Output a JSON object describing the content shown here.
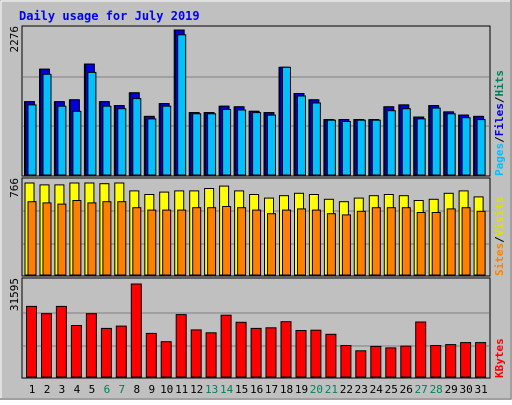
{
  "colors": {
    "background": "#c0c0c0",
    "plot_bg": "#c0c0c0",
    "title": "#0000ff",
    "hits": "#00805c",
    "files": "#0000e0",
    "pages": "#00c0ff",
    "visits": "#ffff00",
    "sites": "#ff8000",
    "kbytes": "#ff0000",
    "weekend_day": "#00805c",
    "weekday_day": "#000000"
  },
  "chart_data": [
    {
      "type": "bar",
      "title": "Daily usage for July 2019",
      "ymax_label": "2276",
      "ymax": 2276,
      "legend": [
        "Pages",
        "/",
        "Files",
        "/",
        "Hits"
      ],
      "categories": [
        "1",
        "2",
        "3",
        "4",
        "5",
        "6",
        "7",
        "8",
        "9",
        "10",
        "11",
        "12",
        "13",
        "14",
        "15",
        "16",
        "17",
        "18",
        "19",
        "20",
        "21",
        "22",
        "23",
        "24",
        "25",
        "26",
        "27",
        "28",
        "29",
        "30",
        "31"
      ],
      "weekend_days": [
        "6",
        "7",
        "13",
        "14",
        "20",
        "21",
        "27",
        "28"
      ],
      "series": [
        {
          "name": "Hits",
          "values": [
            1150,
            1660,
            1150,
            1180,
            1740,
            1150,
            1090,
            1290,
            920,
            1120,
            2276,
            980,
            980,
            1080,
            1070,
            1000,
            980,
            1690,
            1280,
            1180,
            870,
            870,
            870,
            870,
            1070,
            1100,
            910,
            1090,
            990,
            940,
            920
          ]
        },
        {
          "name": "Files",
          "values": [
            1150,
            1660,
            1150,
            1180,
            1740,
            1150,
            1090,
            1290,
            920,
            1120,
            2276,
            980,
            980,
            1080,
            1070,
            1000,
            980,
            1690,
            1280,
            1180,
            870,
            870,
            870,
            870,
            1070,
            1100,
            910,
            1090,
            990,
            940,
            920
          ]
        },
        {
          "name": "Pages",
          "values": [
            1100,
            1580,
            1080,
            1000,
            1610,
            1080,
            1040,
            1200,
            880,
            1080,
            2200,
            960,
            960,
            1030,
            1020,
            980,
            940,
            1690,
            1240,
            1130,
            860,
            840,
            860,
            860,
            1010,
            1040,
            880,
            1050,
            960,
            900,
            870
          ]
        }
      ]
    },
    {
      "type": "bar",
      "ymax_label": "766",
      "ymax": 766,
      "legend": [
        "Sites",
        "/",
        "Visits"
      ],
      "categories": [
        "1",
        "2",
        "3",
        "4",
        "5",
        "6",
        "7",
        "8",
        "9",
        "10",
        "11",
        "12",
        "13",
        "14",
        "15",
        "16",
        "17",
        "18",
        "19",
        "20",
        "21",
        "22",
        "23",
        "24",
        "25",
        "26",
        "27",
        "28",
        "29",
        "30",
        "31"
      ],
      "series": [
        {
          "name": "Visits",
          "values": [
            766,
            750,
            750,
            766,
            766,
            760,
            766,
            700,
            670,
            690,
            700,
            700,
            720,
            740,
            700,
            670,
            640,
            660,
            680,
            670,
            630,
            610,
            640,
            660,
            670,
            660,
            620,
            630,
            680,
            700,
            650
          ]
        },
        {
          "name": "Sites",
          "values": [
            610,
            600,
            590,
            620,
            600,
            610,
            610,
            560,
            540,
            540,
            540,
            560,
            560,
            570,
            560,
            540,
            510,
            540,
            550,
            540,
            510,
            500,
            530,
            560,
            560,
            560,
            520,
            520,
            550,
            560,
            530
          ]
        }
      ]
    },
    {
      "type": "bar",
      "ymax_label": "31595",
      "ymax": 31595,
      "legend": [
        "KBytes"
      ],
      "categories": [
        "1",
        "2",
        "3",
        "4",
        "5",
        "6",
        "7",
        "8",
        "9",
        "10",
        "11",
        "12",
        "13",
        "14",
        "15",
        "16",
        "17",
        "18",
        "19",
        "20",
        "21",
        "22",
        "23",
        "24",
        "25",
        "26",
        "27",
        "28",
        "29",
        "30",
        "31"
      ],
      "series": [
        {
          "name": "KBytes",
          "values": [
            24000,
            21500,
            24000,
            17500,
            21500,
            16500,
            17300,
            31595,
            14800,
            12000,
            21200,
            16000,
            15000,
            21000,
            18600,
            16500,
            16700,
            18800,
            15800,
            15900,
            14500,
            10700,
            8900,
            10400,
            9900,
            10500,
            18700,
            10700,
            11000,
            11700,
            11700
          ]
        }
      ]
    }
  ]
}
